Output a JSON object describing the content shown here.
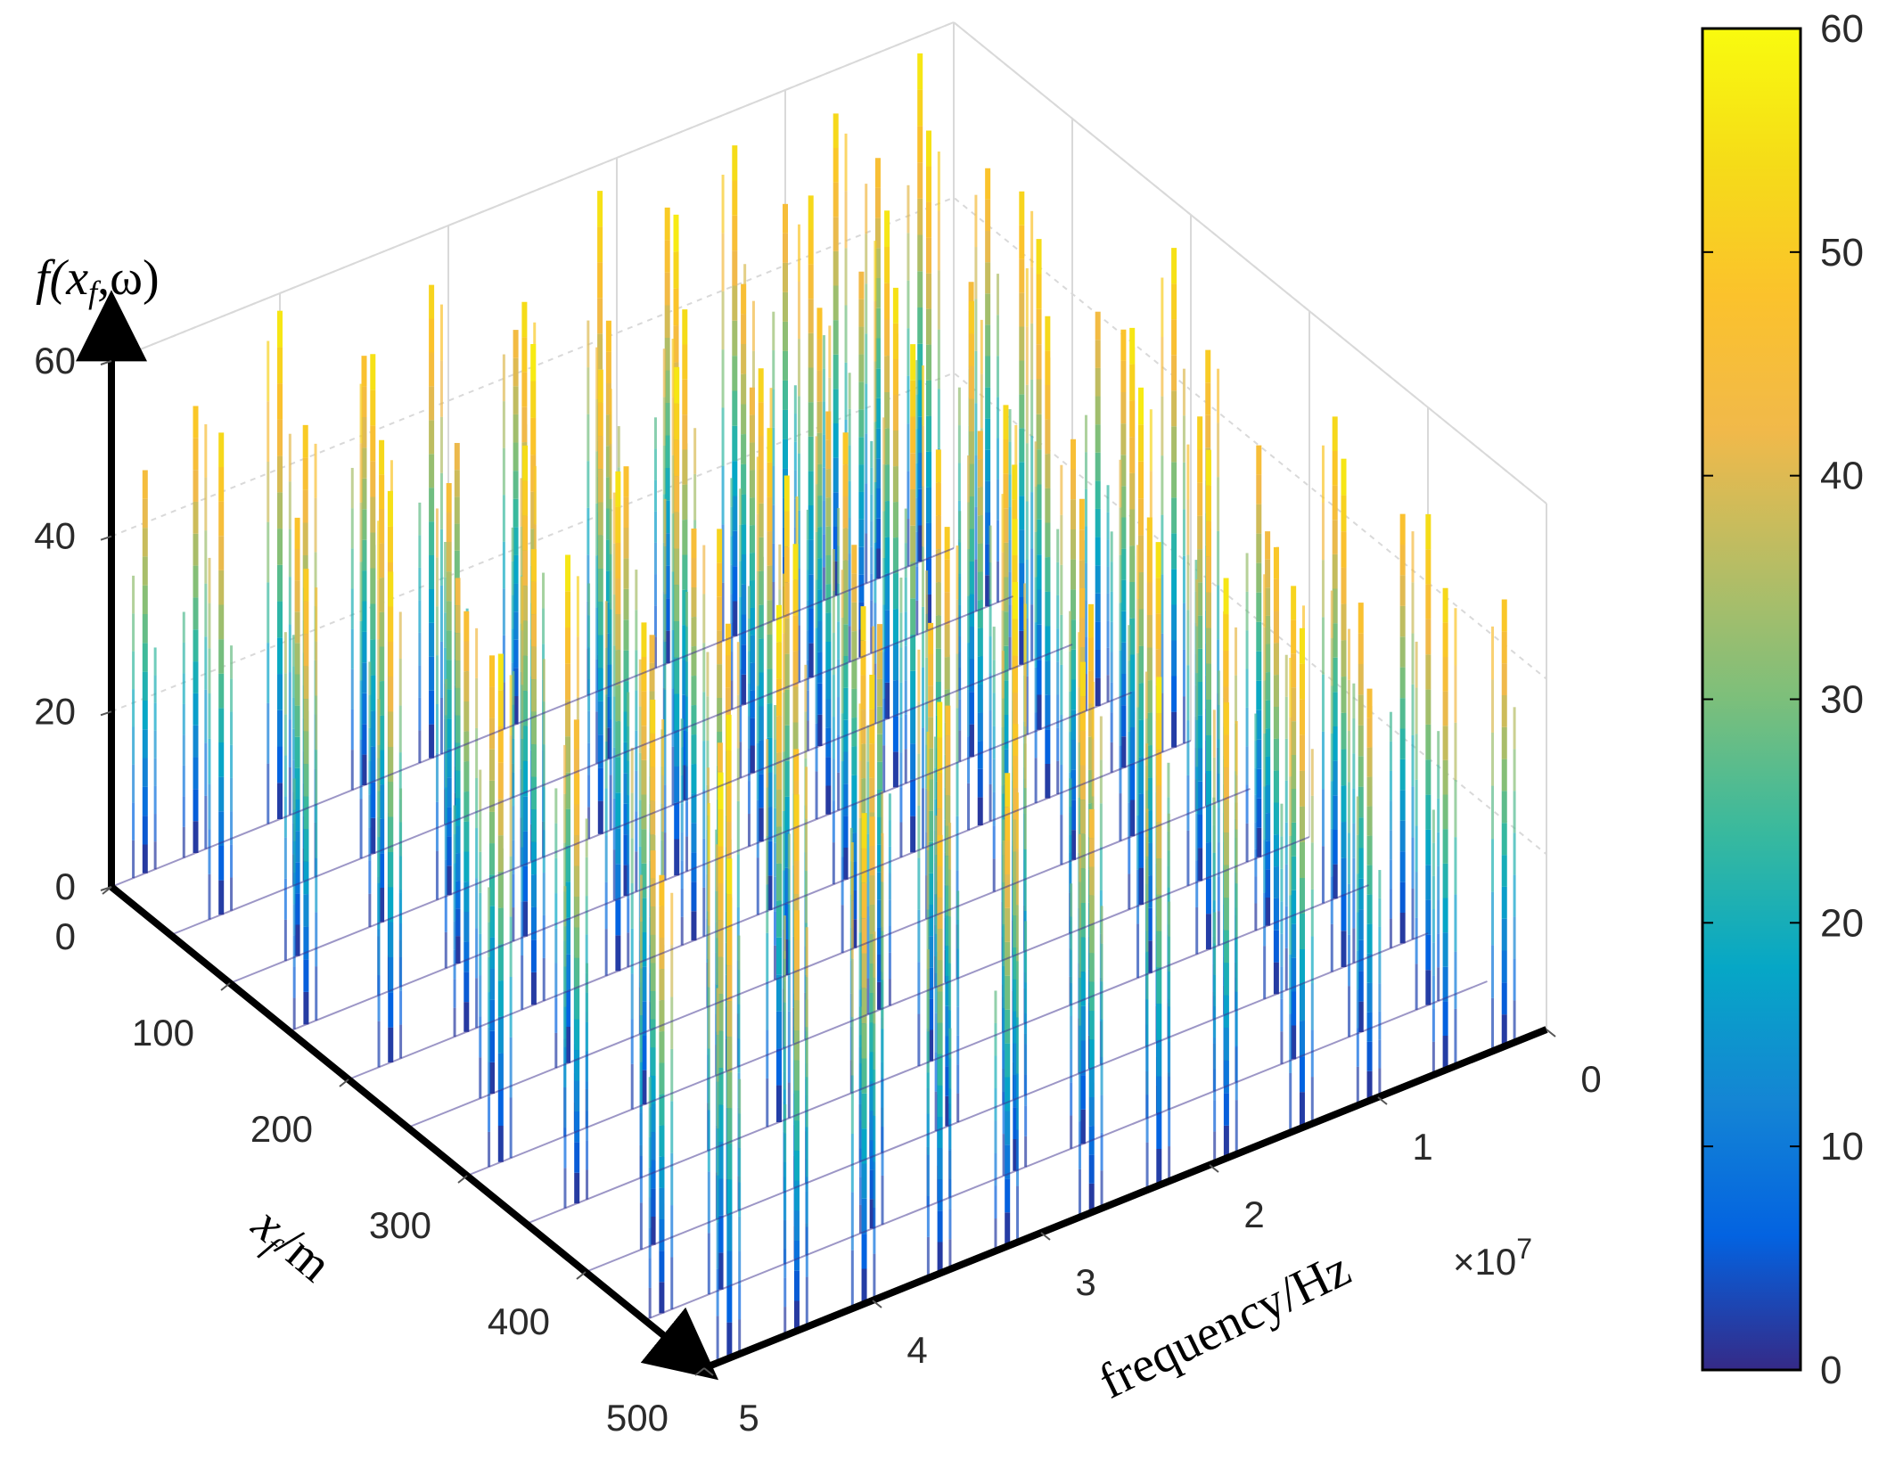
{
  "chart_data": {
    "type": "scatter",
    "subtype": "3d-stem-waterfall",
    "title": "",
    "zlabel_prefix": "f(",
    "zlabel_var": "x",
    "zlabel_sub": "f",
    "zlabel_suffix": ",ω)",
    "ylabel_var": "x",
    "ylabel_sub": "f",
    "ylabel_suffix": "/m",
    "xlabel": "frequency/Hz",
    "x_exponent_label": "×10",
    "x_exponent_power": "7",
    "x_axis": {
      "label": "frequency/Hz",
      "ticks": [
        "0",
        "1",
        "2",
        "3",
        "4",
        "5"
      ],
      "range": [
        0,
        5
      ],
      "scale": 10000000
    },
    "y_axis": {
      "label": "x_f/m",
      "ticks": [
        "0",
        "100",
        "200",
        "300",
        "400",
        "500"
      ],
      "range": [
        0,
        500
      ]
    },
    "z_axis": {
      "label": "f(x_f,ω)",
      "ticks": [
        "0",
        "20",
        "40",
        "60"
      ],
      "range": [
        0,
        60
      ]
    },
    "colorbar": {
      "ticks": [
        "0",
        "10",
        "20",
        "30",
        "40",
        "50",
        "60"
      ],
      "range": [
        0,
        60
      ],
      "colormap": "parula"
    },
    "grid": true,
    "series": [
      {
        "y": 0,
        "peaks": [
          [
            0.2,
            58
          ],
          [
            0.45,
            48
          ],
          [
            0.7,
            55
          ],
          [
            1.0,
            47
          ],
          [
            1.3,
            56
          ],
          [
            1.7,
            52
          ],
          [
            2.1,
            57
          ],
          [
            2.6,
            45
          ],
          [
            3.1,
            54
          ],
          [
            3.5,
            49
          ],
          [
            4.0,
            58
          ],
          [
            4.5,
            51
          ],
          [
            4.8,
            46
          ]
        ]
      },
      {
        "y": 50,
        "peaks": [
          [
            0.15,
            50
          ],
          [
            0.5,
            57
          ],
          [
            0.9,
            44
          ],
          [
            1.2,
            55
          ],
          [
            1.6,
            48
          ],
          [
            2.0,
            59
          ],
          [
            2.4,
            50
          ],
          [
            2.9,
            56
          ],
          [
            3.3,
            43
          ],
          [
            3.8,
            57
          ],
          [
            4.2,
            52
          ],
          [
            4.7,
            55
          ]
        ]
      },
      {
        "y": 100,
        "peaks": [
          [
            0.3,
            54
          ],
          [
            0.6,
            46
          ],
          [
            1.1,
            58
          ],
          [
            1.5,
            50
          ],
          [
            1.9,
            44
          ],
          [
            2.3,
            56
          ],
          [
            2.8,
            53
          ],
          [
            3.2,
            59
          ],
          [
            3.7,
            47
          ],
          [
            4.1,
            55
          ],
          [
            4.6,
            50
          ]
        ]
      },
      {
        "y": 150,
        "peaks": [
          [
            0.2,
            45
          ],
          [
            0.55,
            56
          ],
          [
            0.95,
            52
          ],
          [
            1.4,
            57
          ],
          [
            1.8,
            46
          ],
          [
            2.2,
            54
          ],
          [
            2.7,
            58
          ],
          [
            3.0,
            49
          ],
          [
            3.6,
            56
          ],
          [
            4.0,
            44
          ],
          [
            4.4,
            57
          ],
          [
            4.9,
            52
          ]
        ]
      },
      {
        "y": 200,
        "peaks": [
          [
            0.1,
            57
          ],
          [
            0.4,
            50
          ],
          [
            0.85,
            55
          ],
          [
            1.25,
            45
          ],
          [
            1.65,
            58
          ],
          [
            2.05,
            51
          ],
          [
            2.5,
            55
          ],
          [
            2.95,
            47
          ],
          [
            3.4,
            57
          ],
          [
            3.9,
            52
          ],
          [
            4.3,
            48
          ],
          [
            4.75,
            56
          ]
        ]
      },
      {
        "y": 250,
        "peaks": [
          [
            0.25,
            52
          ],
          [
            0.7,
            58
          ],
          [
            1.05,
            48
          ],
          [
            1.45,
            55
          ],
          [
            1.85,
            53
          ],
          [
            2.35,
            46
          ],
          [
            2.75,
            57
          ],
          [
            3.15,
            54
          ],
          [
            3.55,
            45
          ],
          [
            4.05,
            58
          ],
          [
            4.5,
            50
          ]
        ]
      },
      {
        "y": 300,
        "peaks": [
          [
            0.3,
            47
          ],
          [
            0.65,
            53
          ],
          [
            1.0,
            59
          ],
          [
            1.35,
            49
          ],
          [
            1.75,
            56
          ],
          [
            2.15,
            52
          ],
          [
            2.55,
            44
          ],
          [
            3.05,
            57
          ],
          [
            3.45,
            51
          ],
          [
            3.95,
            55
          ],
          [
            4.35,
            47
          ],
          [
            4.8,
            58
          ]
        ]
      },
      {
        "y": 350,
        "peaks": [
          [
            0.2,
            55
          ],
          [
            0.6,
            45
          ],
          [
            0.95,
            57
          ],
          [
            1.3,
            52
          ],
          [
            1.7,
            47
          ],
          [
            2.1,
            58
          ],
          [
            2.6,
            50
          ],
          [
            3.0,
            55
          ],
          [
            3.5,
            59
          ],
          [
            3.85,
            46
          ],
          [
            4.25,
            54
          ],
          [
            4.7,
            49
          ]
        ]
      },
      {
        "y": 400,
        "peaks": [
          [
            0.15,
            49
          ],
          [
            0.5,
            58
          ],
          [
            0.9,
            51
          ],
          [
            1.2,
            46
          ],
          [
            1.6,
            57
          ],
          [
            2.0,
            53
          ],
          [
            2.45,
            59
          ],
          [
            2.85,
            48
          ],
          [
            3.3,
            55
          ],
          [
            3.75,
            50
          ],
          [
            4.15,
            57
          ],
          [
            4.6,
            45
          ]
        ]
      },
      {
        "y": 450,
        "peaks": [
          [
            0.35,
            56
          ],
          [
            0.75,
            49
          ],
          [
            1.15,
            54
          ],
          [
            1.55,
            58
          ],
          [
            1.95,
            45
          ],
          [
            2.4,
            55
          ],
          [
            2.8,
            51
          ],
          [
            3.25,
            57
          ],
          [
            3.65,
            47
          ],
          [
            4.1,
            53
          ],
          [
            4.55,
            59
          ],
          [
            4.9,
            50
          ]
        ]
      },
      {
        "y": 500,
        "peaks": [
          [
            0.25,
            51
          ],
          [
            0.6,
            55
          ],
          [
            1.05,
            47
          ],
          [
            1.45,
            57
          ],
          [
            1.9,
            52
          ],
          [
            2.3,
            58
          ],
          [
            2.7,
            46
          ],
          [
            3.2,
            54
          ],
          [
            3.6,
            50
          ],
          [
            4.05,
            56
          ],
          [
            4.45,
            48
          ],
          [
            4.85,
            57
          ]
        ]
      }
    ]
  }
}
